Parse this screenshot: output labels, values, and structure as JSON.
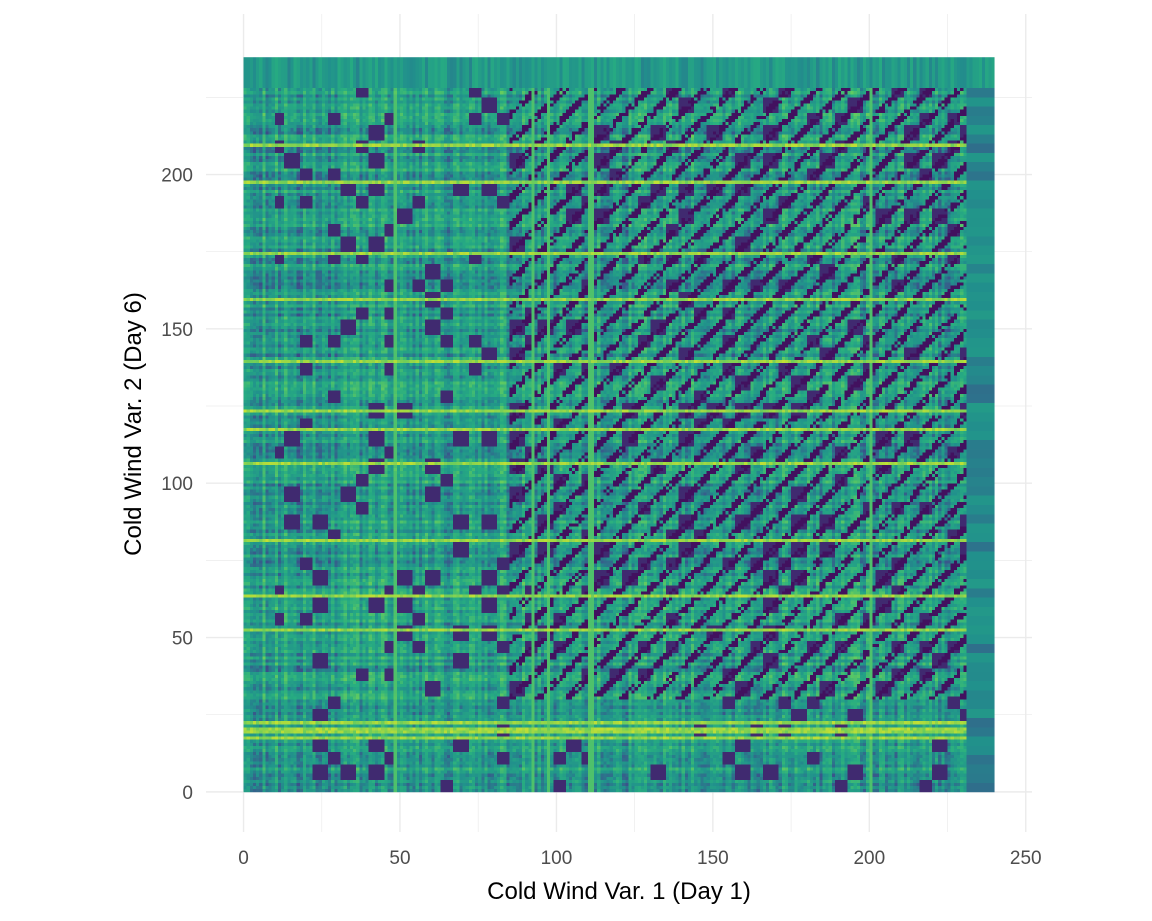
{
  "chart_data": {
    "type": "heatmap",
    "title": "",
    "xlabel": "Cold Wind Var. 1 (Day 1)",
    "ylabel": "Cold Wind Var. 2 (Day 6)",
    "xlim": [
      -12,
      252
    ],
    "ylim": [
      -13,
      252
    ],
    "x_ticks": [
      0,
      50,
      100,
      150,
      200,
      250
    ],
    "y_ticks": [
      0,
      50,
      100,
      150,
      200
    ],
    "x_minor": [
      25,
      75,
      125,
      175,
      225
    ],
    "y_minor": [
      25,
      75,
      125,
      175,
      225
    ],
    "grid": true,
    "legend": "none",
    "cells": {
      "x_range": [
        0,
        240
      ],
      "y_range": [
        0,
        238
      ],
      "resolution": 1
    },
    "colorscale": [
      "#440154",
      "#3b528b",
      "#21908c",
      "#27ad81",
      "#5ec962",
      "#d4e42c"
    ],
    "palette_name": "viridis",
    "colors": {
      "grid": "#ebebeb",
      "tick_text": "#4d4d4d",
      "axis_title": "#000000",
      "background": "#ffffff"
    }
  }
}
